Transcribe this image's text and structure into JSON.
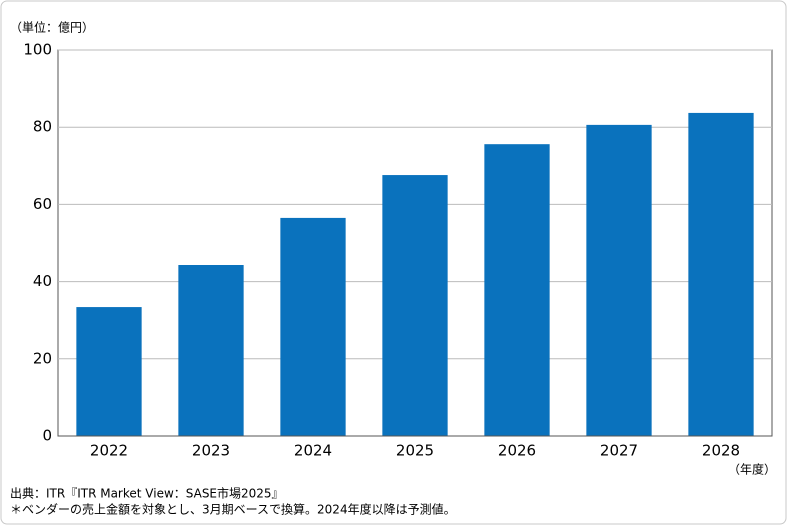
{
  "chart_data": {
    "type": "bar",
    "unit_label": "（単位：億円）",
    "x_unit_label": "（年度）",
    "source": "出典：ITR『ITR Market View：SASE市場2025』",
    "note": "＊ベンダーの売上金額を対象とし、3月期ベースで換算。2024年度以降は予測値。",
    "categories": [
      "2022",
      "2023",
      "2024",
      "2025",
      "2026",
      "2027",
      "2028"
    ],
    "values": [
      33.4,
      44.3,
      56.5,
      67.6,
      75.6,
      80.6,
      83.7
    ],
    "color": "#0a72bd",
    "ylim": [
      0,
      100
    ],
    "yticks": [
      0,
      20,
      40,
      60,
      80,
      100
    ],
    "grid": true
  }
}
